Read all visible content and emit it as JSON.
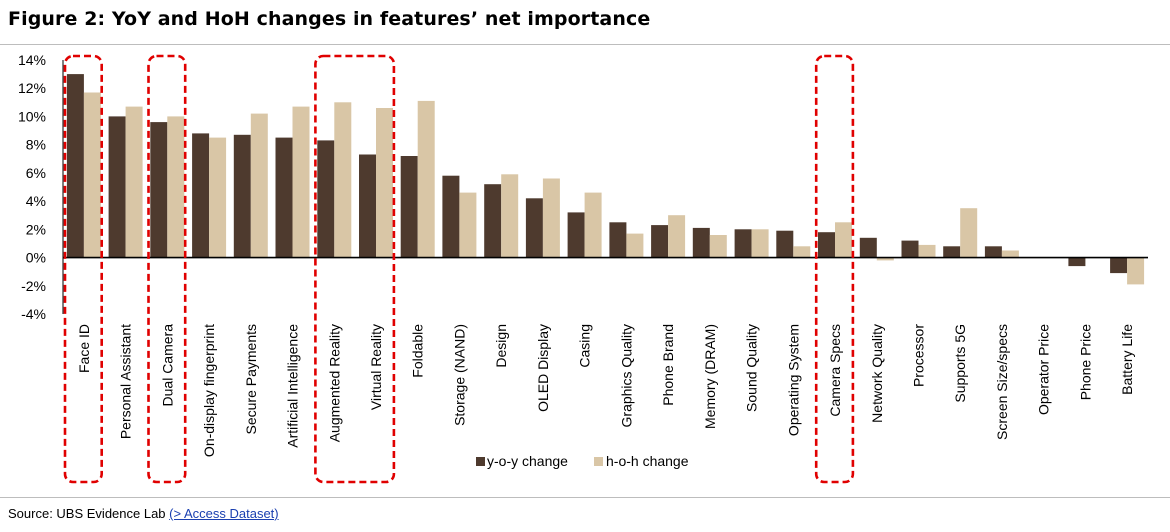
{
  "figure": {
    "title": "Figure 2: YoY and HoH changes in features’ net importance"
  },
  "source": {
    "label": "Source:  UBS Evidence Lab ",
    "link_text": "(> Access Dataset)",
    "suffix": ""
  },
  "colors": {
    "yoy": "#4e3a2e",
    "hoh": "#d9c6a6",
    "highlight_box": "#e00000",
    "axis": "#000000"
  },
  "chart_data": {
    "type": "bar",
    "title": "",
    "xlabel": "",
    "ylabel": "",
    "ylim": [
      -4,
      14
    ],
    "yticks": [
      14,
      12,
      10,
      8,
      6,
      4,
      2,
      0,
      -2,
      -4
    ],
    "ytick_labels": [
      "14%",
      "12%",
      "10%",
      "8%",
      "6%",
      "4%",
      "2%",
      "0%",
      "-2%",
      "-4%"
    ],
    "grid": false,
    "legend_position": "bottom-center",
    "categories": [
      "Face ID",
      "Personal Assistant",
      "Dual Camera",
      "On-display fingerprint",
      "Secure Payments",
      "Artificial Intelligence",
      "Augmented Reality",
      "Virtual Reality",
      "Foldable",
      "Storage (NAND)",
      "Design",
      "OLED Display",
      "Casing",
      "Graphics Quality",
      "Phone Brand",
      "Memory (DRAM)",
      "Sound Quality",
      "Operating System",
      "Camera Specs",
      "Network Quality",
      "Processor",
      "Supports 5G",
      "Screen Size/specs",
      "Operator Price",
      "Phone Price",
      "Battery Life"
    ],
    "series": [
      {
        "name": "y-o-y change",
        "values": [
          13.0,
          10.0,
          9.6,
          8.8,
          8.7,
          8.5,
          8.3,
          7.3,
          7.2,
          5.8,
          5.2,
          4.2,
          3.2,
          2.5,
          2.3,
          2.1,
          2.0,
          1.9,
          1.8,
          1.4,
          1.2,
          0.8,
          0.8,
          0.0,
          -0.6,
          -1.1
        ]
      },
      {
        "name": "h-o-h change",
        "values": [
          11.7,
          10.7,
          10.0,
          8.5,
          10.2,
          10.7,
          11.0,
          10.6,
          11.1,
          4.6,
          5.9,
          5.6,
          4.6,
          1.7,
          3.0,
          1.6,
          2.0,
          0.8,
          2.5,
          -0.2,
          0.9,
          3.5,
          0.5,
          0.0,
          0.0,
          -1.9
        ]
      }
    ],
    "highlighted_categories": [
      "Face ID",
      "Dual Camera",
      "Augmented Reality",
      "Virtual Reality",
      "Camera Specs"
    ]
  }
}
